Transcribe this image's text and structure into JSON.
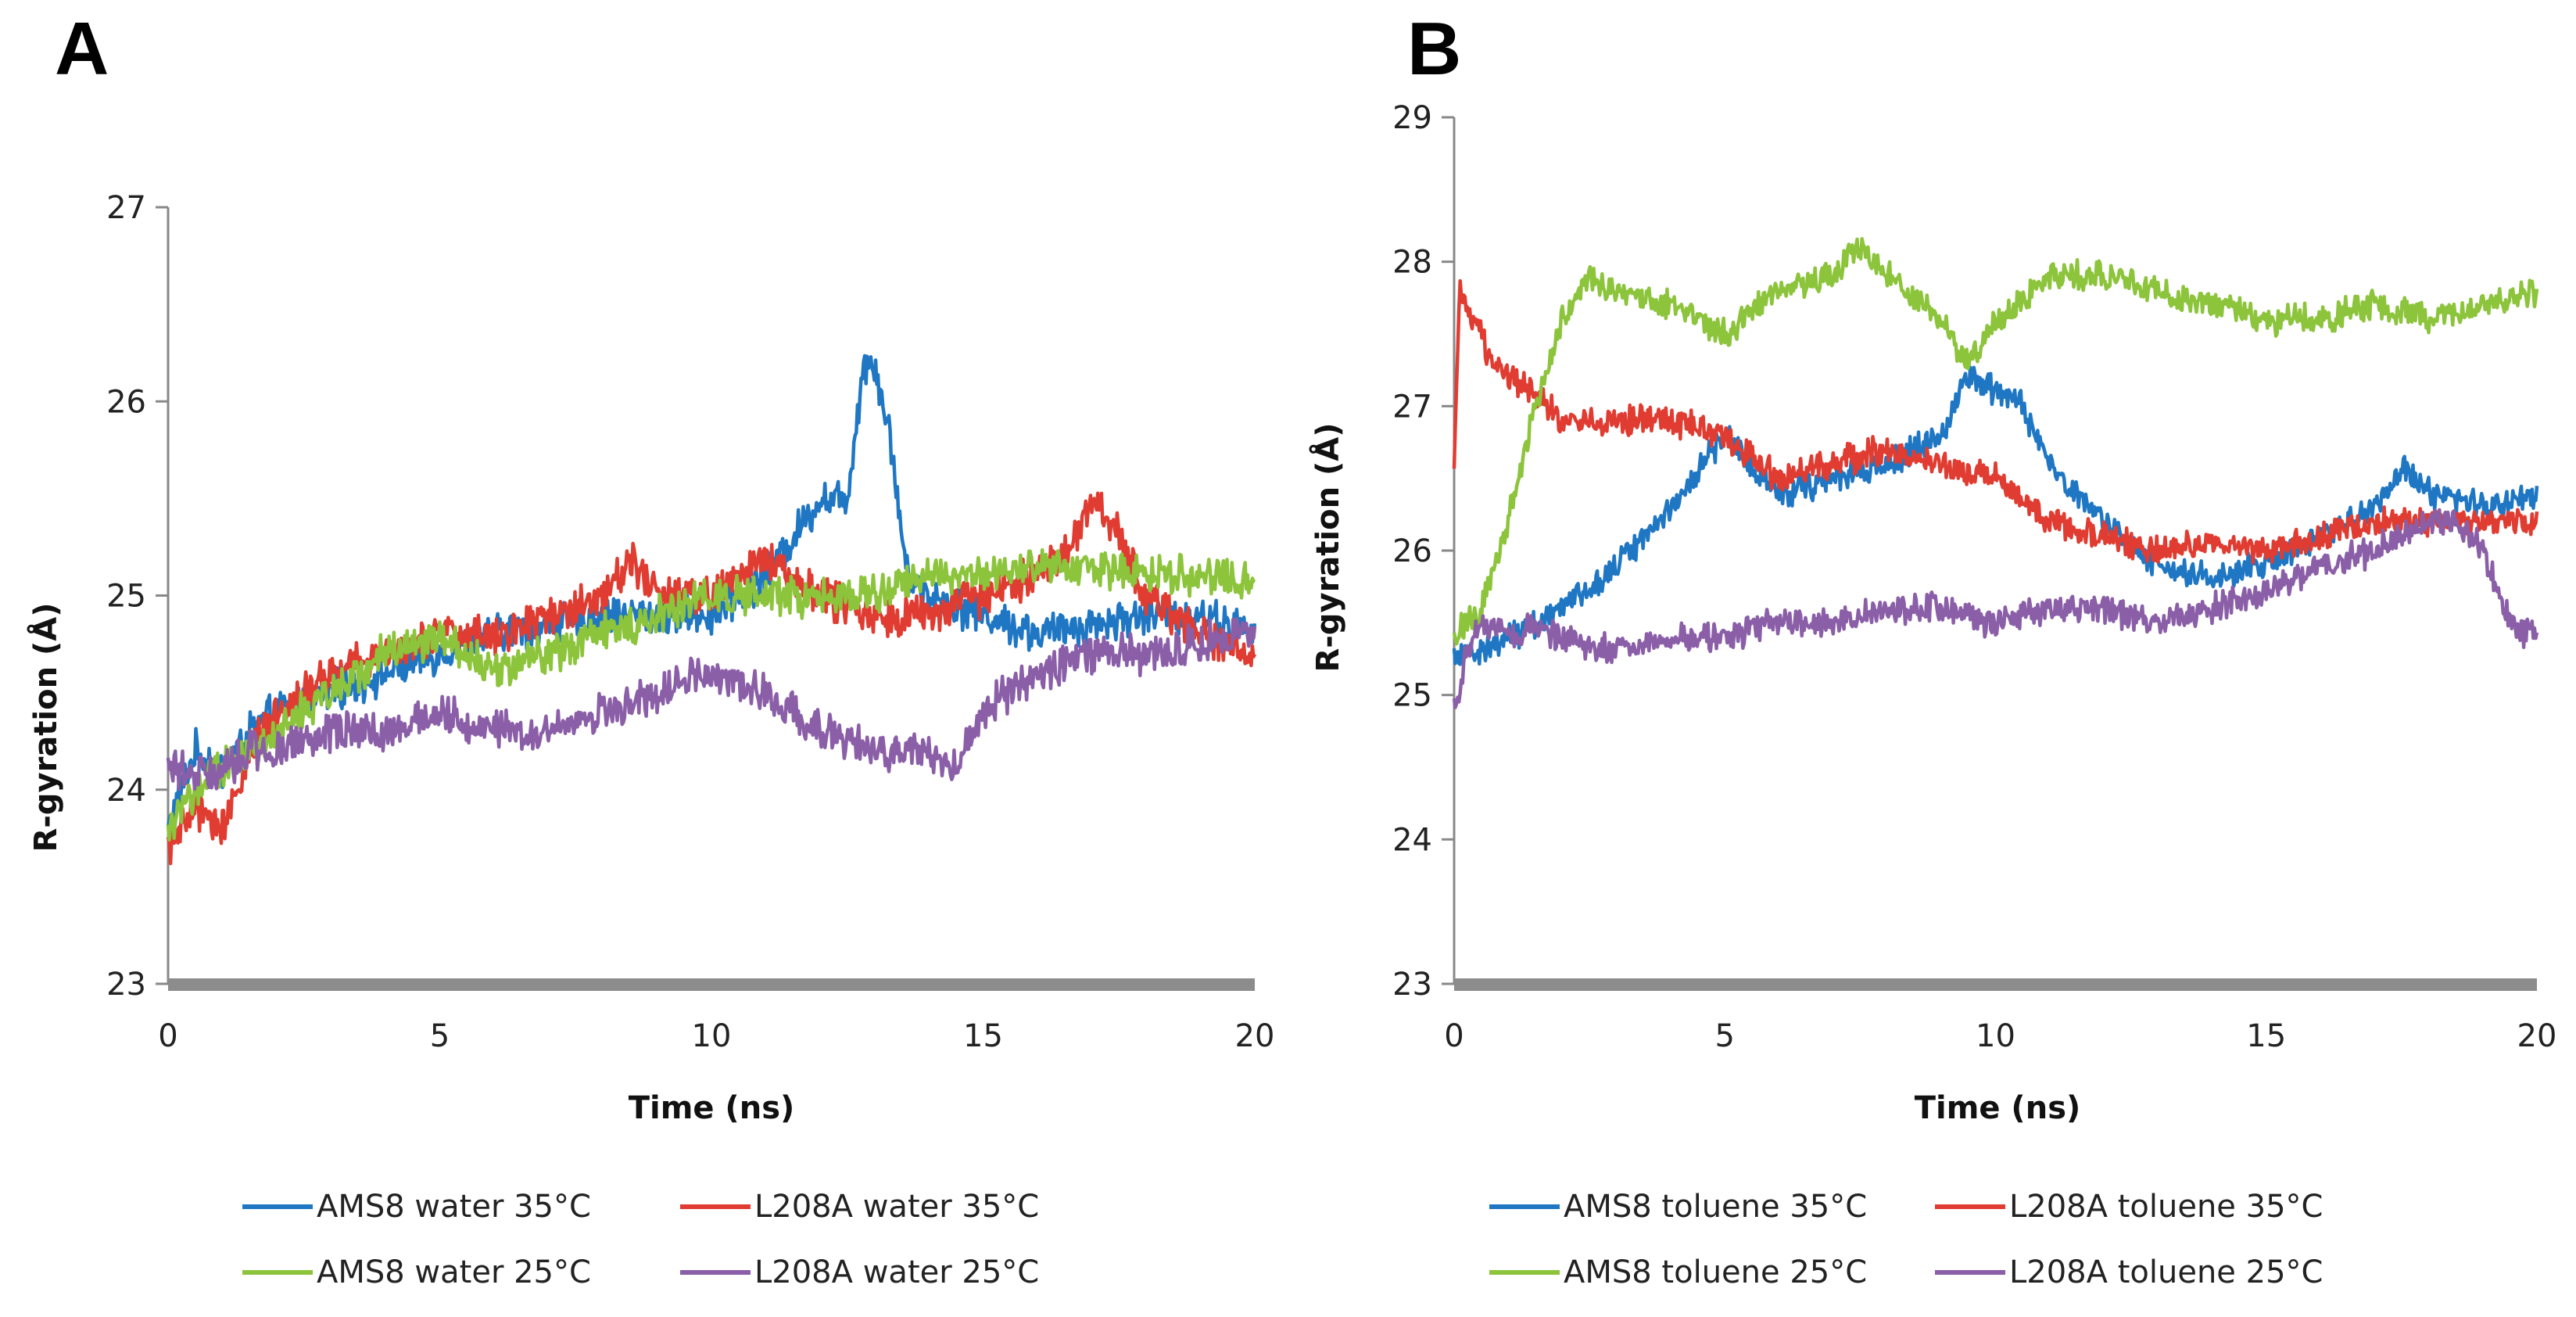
{
  "chart_data": [
    {
      "type": "line",
      "panel_label": "A",
      "xlabel": "Time (ns)",
      "ylabel": "R-gyration (Å)",
      "xlim": [
        0,
        20
      ],
      "ylim": [
        23,
        27
      ],
      "xticks": [
        0,
        5,
        10,
        15,
        20
      ],
      "yticks": [
        23,
        24,
        25,
        26,
        27
      ],
      "grid": false,
      "legend_placement": "bottom",
      "series": [
        {
          "name": "AMS8 water 35°C",
          "color": "#1f77c4",
          "x": [
            0,
            0.5,
            1,
            1.5,
            2,
            3,
            4,
            5,
            6,
            7,
            8,
            9,
            10,
            11,
            11.5,
            12,
            12.5,
            12.8,
            13,
            13.3,
            13.6,
            14,
            15,
            16,
            17,
            18,
            19,
            20
          ],
          "y": [
            23.8,
            24.2,
            24.1,
            24.3,
            24.4,
            24.5,
            24.6,
            24.7,
            24.8,
            24.85,
            24.9,
            24.9,
            24.9,
            25.1,
            25.3,
            25.5,
            25.5,
            26.2,
            26.2,
            25.8,
            25.1,
            25.0,
            24.9,
            24.8,
            24.85,
            24.9,
            24.9,
            24.8
          ]
        },
        {
          "name": "L208A water 35°C",
          "color": "#e03c31",
          "x": [
            0,
            0.5,
            1,
            1.5,
            2,
            3,
            4,
            5,
            6,
            7,
            8,
            8.5,
            9,
            10,
            11,
            12,
            13,
            14,
            15,
            16,
            16.5,
            17,
            17.5,
            18,
            19,
            20
          ],
          "y": [
            23.7,
            23.9,
            23.8,
            24.2,
            24.4,
            24.6,
            24.7,
            24.8,
            24.8,
            24.9,
            25.0,
            25.2,
            25.0,
            25.0,
            25.2,
            25.0,
            24.9,
            24.9,
            25.0,
            25.1,
            25.2,
            25.5,
            25.3,
            25.0,
            24.8,
            24.7
          ]
        },
        {
          "name": "AMS8 water 25°C",
          "color": "#8cc43c",
          "x": [
            0,
            0.5,
            1,
            1.5,
            2,
            3,
            4,
            5,
            6,
            7,
            8,
            9,
            10,
            11,
            12,
            13,
            14,
            15,
            16,
            17,
            18,
            19,
            20
          ],
          "y": [
            23.8,
            24.0,
            24.1,
            24.2,
            24.3,
            24.5,
            24.7,
            24.8,
            24.6,
            24.7,
            24.8,
            24.9,
            25.0,
            25.0,
            25.0,
            25.0,
            25.1,
            25.1,
            25.15,
            25.15,
            25.1,
            25.1,
            25.05
          ]
        },
        {
          "name": "L208A water 25°C",
          "color": "#8b5fa8",
          "x": [
            0,
            0.5,
            1,
            1.5,
            2,
            3,
            4,
            5,
            6,
            7,
            8,
            9,
            10,
            11,
            12,
            13,
            14,
            14.5,
            15,
            16,
            17,
            18,
            19,
            20
          ],
          "y": [
            24.1,
            24.1,
            24.1,
            24.2,
            24.2,
            24.3,
            24.3,
            24.4,
            24.3,
            24.3,
            24.4,
            24.5,
            24.6,
            24.5,
            24.3,
            24.2,
            24.2,
            24.1,
            24.4,
            24.6,
            24.7,
            24.7,
            24.75,
            24.8
          ]
        }
      ]
    },
    {
      "type": "line",
      "panel_label": "B",
      "xlabel": "Time (ns)",
      "ylabel": "R-gyration (Å)",
      "xlim": [
        0,
        20
      ],
      "ylim": [
        23,
        29
      ],
      "xticks": [
        0,
        5,
        10,
        15,
        20
      ],
      "yticks": [
        23,
        24,
        25,
        26,
        27,
        28,
        29
      ],
      "grid": false,
      "legend_placement": "bottom",
      "series": [
        {
          "name": "AMS8 toluene 35°C",
          "color": "#1f77c4",
          "x": [
            0,
            0.5,
            1,
            1.5,
            2,
            3,
            4,
            5,
            6,
            7,
            8,
            9,
            9.5,
            10,
            10.5,
            11,
            12,
            13,
            14,
            15,
            16,
            17,
            17.5,
            18,
            19,
            20
          ],
          "y": [
            25.3,
            25.3,
            25.4,
            25.5,
            25.6,
            25.9,
            26.3,
            26.8,
            26.4,
            26.5,
            26.6,
            26.8,
            27.2,
            27.1,
            27.0,
            26.6,
            26.2,
            25.9,
            25.8,
            25.9,
            26.1,
            26.3,
            26.6,
            26.4,
            26.3,
            26.4
          ]
        },
        {
          "name": "L208A toluene 35°C",
          "color": "#e03c31",
          "x": [
            0,
            0.1,
            0.3,
            0.6,
            1,
            1.5,
            2,
            3,
            4,
            5,
            6,
            7,
            8,
            9,
            10,
            11,
            12,
            13,
            14,
            15,
            16,
            17,
            18,
            19,
            20
          ],
          "y": [
            26.5,
            27.8,
            27.6,
            27.4,
            27.2,
            27.1,
            26.9,
            26.9,
            26.9,
            26.8,
            26.5,
            26.6,
            26.7,
            26.6,
            26.5,
            26.2,
            26.1,
            26.0,
            26.05,
            26.0,
            26.1,
            26.2,
            26.2,
            26.2,
            26.2
          ]
        },
        {
          "name": "AMS8 toluene 25°C",
          "color": "#8cc43c",
          "x": [
            0,
            0.5,
            1,
            1.5,
            2,
            2.5,
            3,
            4,
            5,
            6,
            7,
            7.5,
            8,
            9,
            9.5,
            10,
            11,
            12,
            13,
            14,
            15,
            16,
            17,
            18,
            19,
            20
          ],
          "y": [
            25.4,
            25.6,
            26.2,
            27.0,
            27.6,
            27.9,
            27.8,
            27.7,
            27.5,
            27.8,
            27.9,
            28.1,
            27.9,
            27.6,
            27.3,
            27.6,
            27.9,
            27.9,
            27.8,
            27.7,
            27.6,
            27.6,
            27.7,
            27.6,
            27.7,
            27.8
          ]
        },
        {
          "name": "L208A toluene 25°C",
          "color": "#8b5fa8",
          "x": [
            0,
            0.3,
            0.7,
            1,
            1.5,
            2,
            3,
            4,
            5,
            6,
            7,
            8,
            9,
            10,
            11,
            12,
            13,
            14,
            15,
            16,
            17,
            18,
            18.5,
            19,
            19.5,
            20
          ],
          "y": [
            24.9,
            25.4,
            25.5,
            25.4,
            25.5,
            25.4,
            25.3,
            25.4,
            25.4,
            25.5,
            25.5,
            25.6,
            25.6,
            25.5,
            25.6,
            25.6,
            25.5,
            25.6,
            25.7,
            25.9,
            26.0,
            26.2,
            26.2,
            26.0,
            25.5,
            25.4
          ]
        }
      ]
    }
  ]
}
